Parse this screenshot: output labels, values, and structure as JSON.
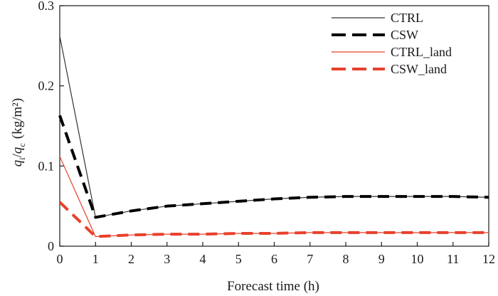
{
  "chart_data": {
    "type": "line",
    "title": "",
    "xlabel": "Forecast time (h)",
    "ylabel": {
      "q1": "q",
      "q1_sub": "i",
      "sep": "/",
      "q2": "q",
      "q2_sub": "c",
      "unit": "(kg/m²)"
    },
    "xlim": [
      0,
      12
    ],
    "ylim": [
      0,
      0.3
    ],
    "x_ticks": [
      "0",
      "1",
      "2",
      "3",
      "4",
      "5",
      "6",
      "7",
      "8",
      "9",
      "10",
      "11",
      "12"
    ],
    "y_ticks": [
      "0",
      "0.1",
      "0.2",
      "0.3"
    ],
    "y_tick_values": [
      0,
      0.1,
      0.2,
      0.3
    ],
    "grid": false,
    "legend_position": "top-right",
    "series": [
      {
        "name": "CTRL",
        "color": "#333333",
        "style": "thin-solid",
        "x": [
          0,
          1,
          2,
          3,
          4,
          5,
          6,
          7,
          8,
          9,
          10,
          11,
          12
        ],
        "values": [
          0.262,
          0.036,
          0.044,
          0.05,
          0.053,
          0.056,
          0.059,
          0.061,
          0.062,
          0.062,
          0.062,
          0.062,
          0.061
        ]
      },
      {
        "name": "CSW",
        "color": "#000000",
        "style": "thick-dashed",
        "x": [
          0,
          1,
          2,
          3,
          4,
          5,
          6,
          7,
          8,
          9,
          10,
          11,
          12
        ],
        "values": [
          0.163,
          0.036,
          0.044,
          0.05,
          0.053,
          0.056,
          0.059,
          0.061,
          0.062,
          0.062,
          0.062,
          0.062,
          0.061
        ]
      },
      {
        "name": "CTRL_land",
        "color": "#e8402c",
        "style": "thin-solid",
        "x": [
          0,
          1,
          2,
          3,
          4,
          5,
          6,
          7,
          8,
          9,
          10,
          11,
          12
        ],
        "values": [
          0.112,
          0.012,
          0.014,
          0.015,
          0.015,
          0.016,
          0.016,
          0.017,
          0.017,
          0.017,
          0.017,
          0.017,
          0.017
        ]
      },
      {
        "name": "CSW_land",
        "color": "#e8402c",
        "style": "thick-dashed",
        "x": [
          0,
          1,
          2,
          3,
          4,
          5,
          6,
          7,
          8,
          9,
          10,
          11,
          12
        ],
        "values": [
          0.055,
          0.012,
          0.014,
          0.015,
          0.015,
          0.016,
          0.016,
          0.017,
          0.017,
          0.017,
          0.017,
          0.017,
          0.017
        ]
      }
    ]
  }
}
